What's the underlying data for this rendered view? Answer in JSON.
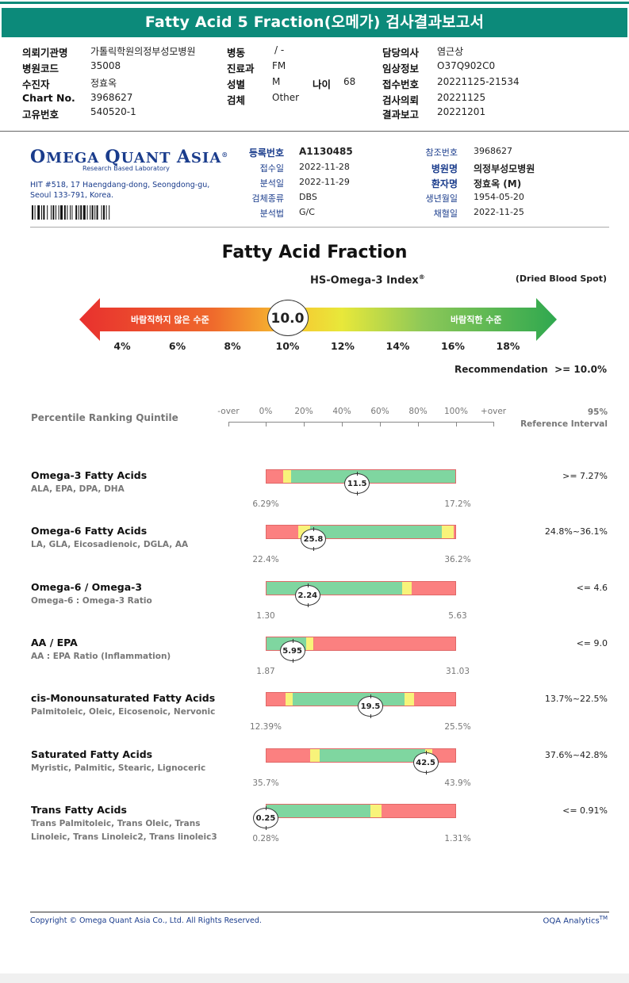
{
  "header": {
    "title": "Fatty Acid 5 Fraction(오메가) 검사결과보고서",
    "fields": [
      {
        "label": "의뢰기관명",
        "value": "가톨릭학원의정부성모병원"
      },
      {
        "label": "병원코드",
        "value": "35008"
      },
      {
        "label": "수진자",
        "value": "정효옥"
      },
      {
        "label": "Chart No.",
        "value": "3968627"
      },
      {
        "label": "고유번호",
        "value": "540520-1"
      },
      {
        "label": "병동",
        "value": "/ -"
      },
      {
        "label": "진료과",
        "value": "FM"
      },
      {
        "label": "성별",
        "value": "M"
      },
      {
        "label": "나이",
        "value": "68"
      },
      {
        "label": "검체",
        "value": "Other"
      },
      {
        "label": "담당의사",
        "value": "염근상"
      },
      {
        "label": "임상정보",
        "value": "O37Q902C0"
      },
      {
        "label": "접수번호",
        "value": "20221125-21534"
      },
      {
        "label": "검사의뢰",
        "value": "20221125"
      },
      {
        "label": "결과보고",
        "value": "20221201"
      }
    ]
  },
  "lab": {
    "logo_main": "OMEGA QUANT ASIA",
    "logo_first_o": "O",
    "logo_mid": "MEGA ",
    "logo_q": "Q",
    "logo_uant": "UANT ",
    "logo_a": "A",
    "logo_sia": "SIA",
    "logo_reg": "®",
    "subtitle": "Research Based Laboratory",
    "address_line1": "HIT #518, 17 Haengdang-dong, Seongdong-gu,",
    "address_line2": "Seoul 133-791, Korea."
  },
  "registration": {
    "left": [
      {
        "label": "등록번호",
        "value": "A1130485",
        "bold": true
      },
      {
        "label": "접수일",
        "value": "2022-11-28"
      },
      {
        "label": "분석일",
        "value": "2022-11-29"
      },
      {
        "label": "검체종류",
        "value": "DBS"
      },
      {
        "label": "분석법",
        "value": "G/C"
      }
    ],
    "right": [
      {
        "label": "참조번호",
        "value": "3968627"
      },
      {
        "label": "병원명",
        "value": "의정부성모병원",
        "bold": true
      },
      {
        "label": "환자명",
        "value": "정효옥 (M)",
        "bold": true
      },
      {
        "label": "생년월일",
        "value": "1954-05-20"
      },
      {
        "label": "채혈일",
        "value": "2022-11-25"
      }
    ]
  },
  "index": {
    "section_title": "Fatty Acid Fraction",
    "name": "HS-Omega-3 Index",
    "name_sup": "®",
    "specimen_note": "(Dried Blood Spot)",
    "value": "10.0",
    "value_num": 10.0,
    "left_text": "바람직하지 않은 수준",
    "right_text": "바람직한 수준",
    "ticks": [
      "4%",
      "6%",
      "8%",
      "10%",
      "12%",
      "14%",
      "16%",
      "18%"
    ],
    "recommendation_label": "Recommendation",
    "recommendation_value": ">= 10.0%"
  },
  "quintile": {
    "title": "Percentile Ranking Quintile",
    "scale": [
      "-over",
      "0%",
      "20%",
      "40%",
      "60%",
      "80%",
      "100%",
      "+over"
    ],
    "ref_line1": "95%",
    "ref_line2": "Reference Interval"
  },
  "colors": {
    "teal": "#0c8a7a",
    "navy": "#1a3c8c",
    "green": "#7fd6a0",
    "yellow": "#f8f37a",
    "red": "#fb8080"
  },
  "rows": [
    {
      "title": "Omega-3 Fatty Acids",
      "sub": [
        "ALA, EPA, DPA, DHA"
      ],
      "value": "11.5",
      "min": "6.29%",
      "max": "17.2%",
      "ref": ">= 7.27%",
      "marker_pos": 0.48,
      "segments": [
        {
          "c": "r",
          "s": 0,
          "e": 0.09
        },
        {
          "c": "y",
          "s": 0.09,
          "e": 0.13
        },
        {
          "c": "g",
          "s": 0.13,
          "e": 1
        }
      ]
    },
    {
      "title": "Omega-6 Fatty Acids",
      "sub": [
        "LA, GLA, Eicosadienoic, DGLA, AA"
      ],
      "value": "25.8",
      "min": "22.4%",
      "max": "36.2%",
      "ref": "24.8%~36.1%",
      "marker_pos": 0.25,
      "segments": [
        {
          "c": "r",
          "s": 0,
          "e": 0.17
        },
        {
          "c": "y",
          "s": 0.17,
          "e": 0.23
        },
        {
          "c": "g",
          "s": 0.23,
          "e": 0.93
        },
        {
          "c": "y",
          "s": 0.93,
          "e": 0.99
        },
        {
          "c": "r",
          "s": 0.99,
          "e": 1
        }
      ]
    },
    {
      "title": "Omega-6 / Omega-3",
      "sub": [
        "Omega-6 : Omega-3 Ratio"
      ],
      "value": "2.24",
      "min": "1.30",
      "max": "5.63",
      "ref": "<= 4.6",
      "marker_pos": 0.22,
      "segments": [
        {
          "c": "g",
          "s": 0,
          "e": 0.72
        },
        {
          "c": "y",
          "s": 0.72,
          "e": 0.77
        },
        {
          "c": "r",
          "s": 0.77,
          "e": 1
        }
      ]
    },
    {
      "title": "AA / EPA",
      "sub": [
        "AA : EPA Ratio (Inflammation)"
      ],
      "value": "5.95",
      "min": "1.87",
      "max": "31.03",
      "ref": "<= 9.0",
      "marker_pos": 0.14,
      "segments": [
        {
          "c": "g",
          "s": 0,
          "e": 0.21
        },
        {
          "c": "y",
          "s": 0.21,
          "e": 0.25
        },
        {
          "c": "r",
          "s": 0.25,
          "e": 1
        }
      ]
    },
    {
      "title": "cis-Monounsaturated Fatty Acids",
      "sub": [
        "Palmitoleic, Oleic, Eicosenoic, Nervonic"
      ],
      "value": "19.5",
      "min": "12.39%",
      "max": "25.5%",
      "ref": "13.7%~22.5%",
      "marker_pos": 0.55,
      "segments": [
        {
          "c": "r",
          "s": 0,
          "e": 0.1
        },
        {
          "c": "y",
          "s": 0.1,
          "e": 0.14
        },
        {
          "c": "g",
          "s": 0.14,
          "e": 0.73
        },
        {
          "c": "y",
          "s": 0.73,
          "e": 0.78
        },
        {
          "c": "r",
          "s": 0.78,
          "e": 1
        }
      ]
    },
    {
      "title": "Saturated Fatty Acids",
      "sub": [
        "Myristic, Palmitic, Stearic, Lignoceric"
      ],
      "value": "42.5",
      "min": "35.7%",
      "max": "43.9%",
      "ref": "37.6%~42.8%",
      "marker_pos": 0.84,
      "segments": [
        {
          "c": "r",
          "s": 0,
          "e": 0.23
        },
        {
          "c": "y",
          "s": 0.23,
          "e": 0.28
        },
        {
          "c": "g",
          "s": 0.28,
          "e": 0.84
        },
        {
          "c": "y",
          "s": 0.84,
          "e": 0.88
        },
        {
          "c": "r",
          "s": 0.88,
          "e": 1
        }
      ]
    },
    {
      "title": "Trans Fatty Acids",
      "sub": [
        "Trans Palmitoleic, Trans Oleic, Trans",
        "Linoleic, Trans Linoleic2, Trans linoleic3"
      ],
      "value": "0.25",
      "min": "0.28%",
      "max": "1.31%",
      "ref": "<= 0.91%",
      "marker_pos": 0.0,
      "segments": [
        {
          "c": "g",
          "s": 0,
          "e": 0.55
        },
        {
          "c": "y",
          "s": 0.55,
          "e": 0.61
        },
        {
          "c": "r",
          "s": 0.61,
          "e": 1
        }
      ]
    }
  ],
  "footer": {
    "copyright": "Copyright © Omega Quant Asia Co., Ltd.  All Rights Reserved.",
    "brand": "OQA Analytics",
    "brand_sup": "TM"
  }
}
